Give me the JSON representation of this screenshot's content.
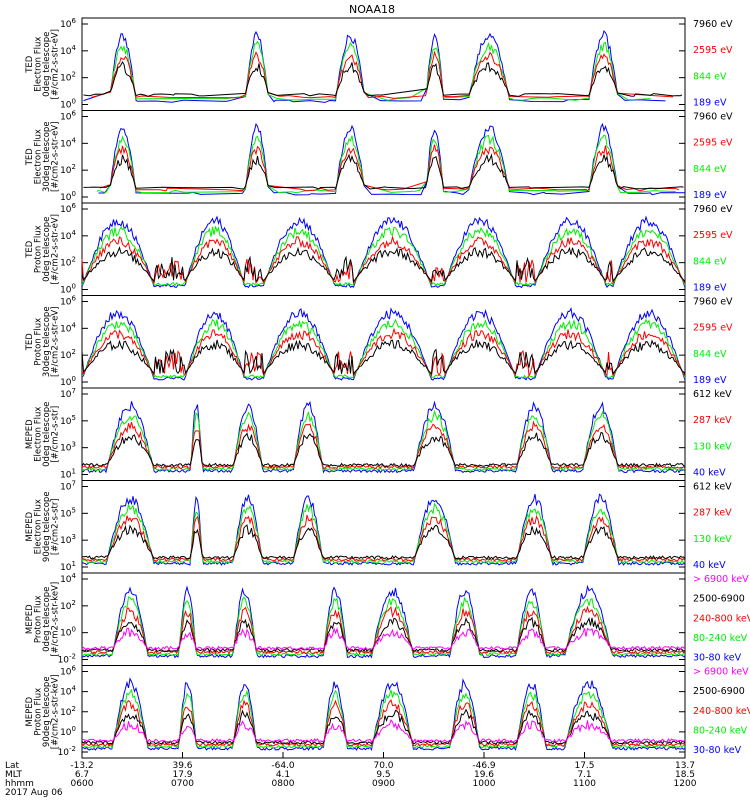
{
  "title": "NOAA18",
  "colors": {
    "black": "#000000",
    "red": "#ff0000",
    "green": "#00ee00",
    "blue": "#0000ff",
    "magenta": "#ff00ff"
  },
  "footer": {
    "row_labels": [
      "Lat",
      "MLT",
      "hhmm"
    ],
    "date": "2017 Aug 06",
    "ticks": [
      {
        "lat": "-13.2",
        "mlt": "6.7",
        "hhmm": "0600"
      },
      {
        "lat": "39.6",
        "mlt": "17.9",
        "hhmm": "0700"
      },
      {
        "lat": "-64.0",
        "mlt": "4.1",
        "hhmm": "0800"
      },
      {
        "lat": "70.0",
        "mlt": "9.5",
        "hhmm": "0900"
      },
      {
        "lat": "-46.9",
        "mlt": "19.6",
        "hhmm": "1000"
      },
      {
        "lat": "17.5",
        "mlt": "7.1",
        "hhmm": "1100"
      },
      {
        "lat": "13.7",
        "mlt": "18.5",
        "hhmm": "1200"
      }
    ]
  },
  "chart_data": [
    {
      "type": "line",
      "ylabel": [
        "TED",
        "Electron Flux",
        "0deg telescope",
        "[#/cm2-s-str-eV]"
      ],
      "y_tick_exponents": [
        0,
        2,
        4,
        6
      ],
      "legend": [
        {
          "label": "7960 eV",
          "color": "#000000"
        },
        {
          "label": "2595 eV",
          "color": "#ff0000"
        },
        {
          "label": "844 eV",
          "color": "#00ee00"
        },
        {
          "label": "189 eV",
          "color": "#0000ff"
        }
      ]
    },
    {
      "type": "line",
      "ylabel": [
        "TED",
        "Electron Flux",
        "30deg telescope",
        "[#/cm2-s-str-eV]"
      ],
      "y_tick_exponents": [
        0,
        2,
        4,
        6
      ],
      "legend": [
        {
          "label": "7960 eV",
          "color": "#000000"
        },
        {
          "label": "2595 eV",
          "color": "#ff0000"
        },
        {
          "label": "844 eV",
          "color": "#00ee00"
        },
        {
          "label": "189 eV",
          "color": "#0000ff"
        }
      ]
    },
    {
      "type": "line",
      "ylabel": [
        "TED",
        "Proton Flux",
        "0deg telescope",
        "[#/cm2-s-str-eV]"
      ],
      "y_tick_exponents": [
        0,
        2,
        4,
        6
      ],
      "legend": [
        {
          "label": "7960 eV",
          "color": "#000000"
        },
        {
          "label": "2595 eV",
          "color": "#ff0000"
        },
        {
          "label": "844 eV",
          "color": "#00ee00"
        },
        {
          "label": "189 eV",
          "color": "#0000ff"
        }
      ]
    },
    {
      "type": "line",
      "ylabel": [
        "TED",
        "Proton Flux",
        "30deg telescope",
        "[#/cm2-s-str-eV]"
      ],
      "y_tick_exponents": [
        0,
        2,
        4,
        6
      ],
      "legend": [
        {
          "label": "7960 eV",
          "color": "#000000"
        },
        {
          "label": "2595 eV",
          "color": "#ff0000"
        },
        {
          "label": "844 eV",
          "color": "#00ee00"
        },
        {
          "label": "189 eV",
          "color": "#0000ff"
        }
      ]
    },
    {
      "type": "line",
      "ylabel": [
        "MEPED",
        "Electron Flux",
        "0deg telescope",
        "[#/cm2-s-str]"
      ],
      "y_tick_exponents": [
        1,
        3,
        5,
        7
      ],
      "legend": [
        {
          "label": "612 keV",
          "color": "#000000"
        },
        {
          "label": "287 keV",
          "color": "#ff0000"
        },
        {
          "label": "130 keV",
          "color": "#00ee00"
        },
        {
          "label": "40 keV",
          "color": "#0000ff"
        }
      ]
    },
    {
      "type": "line",
      "ylabel": [
        "MEPED",
        "Electron Flux",
        "90deg telescope",
        "[#/cm2-s-str]"
      ],
      "y_tick_exponents": [
        1,
        3,
        5,
        7
      ],
      "legend": [
        {
          "label": "612 keV",
          "color": "#000000"
        },
        {
          "label": "287 keV",
          "color": "#ff0000"
        },
        {
          "label": "130 keV",
          "color": "#00ee00"
        },
        {
          "label": "40 keV",
          "color": "#0000ff"
        }
      ]
    },
    {
      "type": "line",
      "ylabel": [
        "MEPED",
        "Proton Flux",
        "0deg telescope",
        "[#/cm2-s-str-keV]"
      ],
      "y_tick_exponents": [
        -2,
        0,
        2,
        4
      ],
      "legend": [
        {
          "label": "> 6900 keV",
          "color": "#ff00ff"
        },
        {
          "label": "2500-6900",
          "color": "#000000"
        },
        {
          "label": "240-800 keV",
          "color": "#ff0000"
        },
        {
          "label": "80-240 keV",
          "color": "#00ee00"
        },
        {
          "label": "30-80 keV",
          "color": "#0000ff"
        }
      ]
    },
    {
      "type": "line",
      "ylabel": [
        "MEPED",
        "Proton Flux",
        "90deg telescope",
        "[#/cm2-s-str-keV]"
      ],
      "y_tick_exponents": [
        -2,
        0,
        2,
        4,
        6
      ],
      "legend": [
        {
          "label": "> 6900 keV",
          "color": "#ff00ff"
        },
        {
          "label": "2500-6900",
          "color": "#000000"
        },
        {
          "label": "240-800 keV",
          "color": "#ff0000"
        },
        {
          "label": "80-240 keV",
          "color": "#00ee00"
        },
        {
          "label": "30-80 keV",
          "color": "#0000ff"
        }
      ]
    }
  ]
}
